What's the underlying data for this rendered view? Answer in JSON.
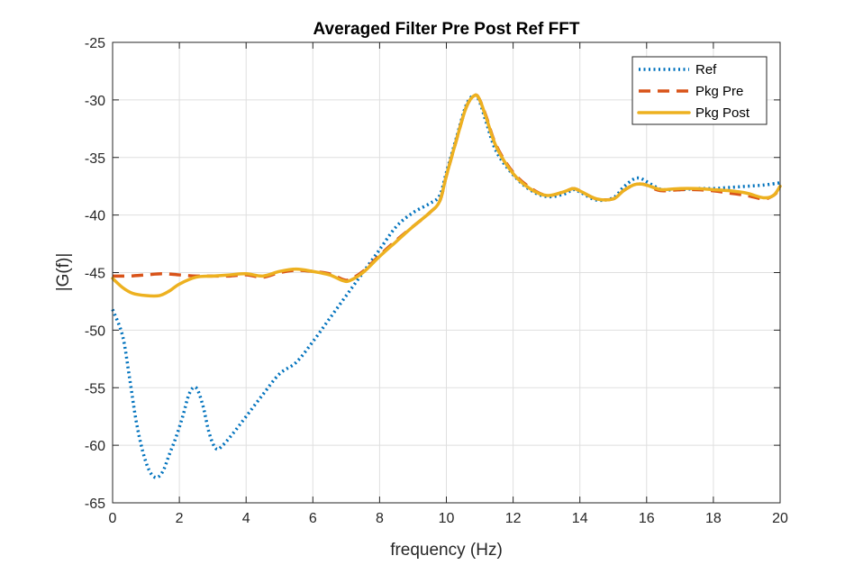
{
  "chart_data": {
    "type": "line",
    "title": "Averaged Filter Pre Post Ref FFT",
    "xlabel": "frequency (Hz)",
    "ylabel": "|G(f)|",
    "xlim": [
      0,
      20
    ],
    "ylim": [
      -65,
      -25
    ],
    "xticks": [
      0,
      2,
      4,
      6,
      8,
      10,
      12,
      14,
      16,
      18,
      20
    ],
    "yticks": [
      -65,
      -60,
      -55,
      -50,
      -45,
      -40,
      -35,
      -30,
      -25
    ],
    "grid": true,
    "legend_position": "top-right",
    "series": [
      {
        "name": "Ref",
        "color": "#0072BD",
        "style": "dotted",
        "x": [
          0,
          0.3,
          0.5,
          0.7,
          0.9,
          1.1,
          1.3,
          1.5,
          1.7,
          1.9,
          2.1,
          2.3,
          2.5,
          2.7,
          2.9,
          3.1,
          3.3,
          3.6,
          4.0,
          4.5,
          5.0,
          5.5,
          6.0,
          6.5,
          7.0,
          7.5,
          8.0,
          8.5,
          9.0,
          9.5,
          9.8,
          10.0,
          10.3,
          10.6,
          10.85,
          11.0,
          11.2,
          11.5,
          12.0,
          12.5,
          13.0,
          13.5,
          13.8,
          14.0,
          14.5,
          15.0,
          15.3,
          15.6,
          15.8,
          16.0,
          16.3,
          16.5,
          17.0,
          17.5,
          18.0,
          18.5,
          19.0,
          19.5,
          20.0
        ],
        "values": [
          -48.2,
          -50.5,
          -54.0,
          -57.8,
          -60.5,
          -62.2,
          -62.8,
          -62.3,
          -60.8,
          -59.3,
          -57.5,
          -55.5,
          -55.0,
          -56.5,
          -59.0,
          -60.3,
          -60.0,
          -59.0,
          -57.5,
          -55.6,
          -53.8,
          -52.8,
          -51.0,
          -49.0,
          -47.0,
          -45.0,
          -43.0,
          -41.0,
          -39.8,
          -39.0,
          -38.3,
          -36.3,
          -33.3,
          -30.4,
          -29.6,
          -30.2,
          -32.0,
          -34.5,
          -36.5,
          -37.8,
          -38.4,
          -38.2,
          -37.8,
          -38.0,
          -38.7,
          -38.5,
          -37.6,
          -36.9,
          -36.8,
          -37.1,
          -37.6,
          -37.8,
          -37.8,
          -37.7,
          -37.7,
          -37.6,
          -37.5,
          -37.4,
          -37.2
        ]
      },
      {
        "name": "Pkg Pre",
        "color": "#D95319",
        "style": "dashed",
        "x": [
          0,
          0.5,
          1.0,
          1.5,
          2.0,
          2.5,
          3.0,
          3.5,
          4.0,
          4.5,
          5.0,
          5.5,
          6.0,
          6.5,
          6.9,
          7.1,
          7.5,
          8.0,
          8.5,
          9.0,
          9.5,
          9.8,
          10.0,
          10.3,
          10.6,
          10.85,
          11.0,
          11.2,
          11.5,
          12.0,
          12.5,
          13.0,
          13.5,
          13.8,
          14.0,
          14.5,
          15.0,
          15.3,
          15.6,
          15.8,
          16.0,
          16.3,
          16.5,
          17.0,
          17.5,
          18.0,
          18.5,
          19.0,
          19.5,
          19.8,
          20.0
        ],
        "values": [
          -45.3,
          -45.3,
          -45.2,
          -45.1,
          -45.2,
          -45.3,
          -45.3,
          -45.3,
          -45.2,
          -45.4,
          -45.0,
          -44.8,
          -44.9,
          -45.1,
          -45.6,
          -45.6,
          -44.9,
          -43.5,
          -42.2,
          -41.0,
          -39.8,
          -38.8,
          -36.6,
          -33.5,
          -30.6,
          -29.6,
          -30.0,
          -31.5,
          -34.0,
          -36.3,
          -37.6,
          -38.3,
          -38.0,
          -37.7,
          -37.9,
          -38.6,
          -38.6,
          -37.9,
          -37.4,
          -37.3,
          -37.4,
          -37.8,
          -37.9,
          -37.8,
          -37.8,
          -37.9,
          -38.1,
          -38.3,
          -38.6,
          -38.3,
          -37.7
        ]
      },
      {
        "name": "Pkg Post",
        "color": "#EDB120",
        "style": "solid",
        "x": [
          0,
          0.3,
          0.6,
          1.0,
          1.4,
          1.7,
          2.0,
          2.5,
          3.0,
          3.5,
          4.0,
          4.5,
          5.0,
          5.5,
          6.0,
          6.5,
          6.9,
          7.1,
          7.5,
          8.0,
          8.5,
          9.0,
          9.5,
          9.8,
          10.0,
          10.3,
          10.6,
          10.85,
          11.0,
          11.2,
          11.5,
          12.0,
          12.5,
          13.0,
          13.5,
          13.8,
          14.0,
          14.5,
          15.0,
          15.3,
          15.6,
          15.8,
          16.0,
          16.3,
          16.5,
          17.0,
          17.5,
          18.0,
          18.5,
          19.0,
          19.5,
          19.8,
          20.0
        ],
        "values": [
          -45.5,
          -46.3,
          -46.8,
          -47.0,
          -47.0,
          -46.6,
          -46.0,
          -45.4,
          -45.3,
          -45.2,
          -45.1,
          -45.3,
          -44.9,
          -44.7,
          -44.9,
          -45.2,
          -45.7,
          -45.7,
          -45.0,
          -43.6,
          -42.3,
          -41.0,
          -39.8,
          -38.8,
          -36.6,
          -33.5,
          -30.6,
          -29.6,
          -30.0,
          -31.6,
          -34.1,
          -36.4,
          -37.7,
          -38.3,
          -38.0,
          -37.7,
          -37.9,
          -38.6,
          -38.6,
          -37.9,
          -37.4,
          -37.3,
          -37.4,
          -37.7,
          -37.8,
          -37.7,
          -37.7,
          -37.8,
          -37.9,
          -38.1,
          -38.5,
          -38.3,
          -37.5
        ]
      }
    ]
  }
}
